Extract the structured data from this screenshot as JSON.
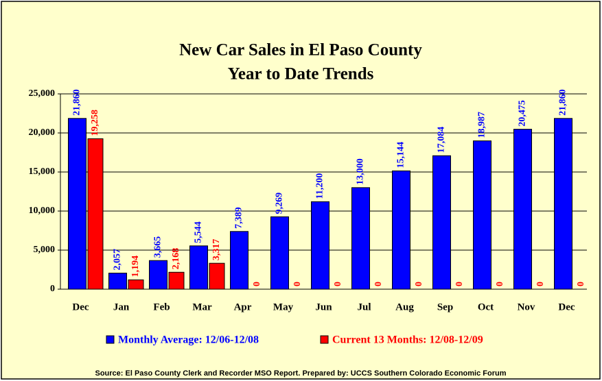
{
  "chart_data": {
    "type": "bar",
    "title": [
      "New Car Sales in El Paso County",
      "Year to Date Trends"
    ],
    "categories": [
      "Dec",
      "Jan",
      "Feb",
      "Mar",
      "Apr",
      "May",
      "Jun",
      "Jul",
      "Aug",
      "Sep",
      "Oct",
      "Nov",
      "Dec"
    ],
    "series": [
      {
        "name": "Monthly Average: 12/06-12/08",
        "color": "#0000ff",
        "values": [
          21860,
          2057,
          3665,
          5544,
          7389,
          9269,
          11200,
          13000,
          15144,
          17084,
          18987,
          20475,
          21860
        ],
        "value_labels": [
          "21,860",
          "2,057",
          "3,665",
          "5,544",
          "7,389",
          "9,269",
          "11,200",
          "13,000",
          "15,144",
          "17,084",
          "18,987",
          "20,475",
          "21,860"
        ]
      },
      {
        "name": "Current 13 Months: 12/08-12/09",
        "color": "#ff0000",
        "values": [
          19258,
          1194,
          2168,
          3317,
          0,
          0,
          0,
          0,
          0,
          0,
          0,
          0,
          0
        ],
        "value_labels": [
          "19,258",
          "1,194",
          "2,168",
          "3,317",
          "0",
          "0",
          "0",
          "0",
          "0",
          "0",
          "0",
          "0",
          "0"
        ]
      }
    ],
    "ylim": [
      0,
      25000
    ],
    "yticks": [
      0,
      {
        "value": 5000,
        "label": "5,000"
      },
      {
        "value": 10000,
        "label": "10,000"
      },
      {
        "value": 15000,
        "label": "15,000"
      },
      {
        "value": 20000,
        "label": "20,000"
      },
      {
        "value": 25000,
        "label": "25,000"
      }
    ],
    "grid": true,
    "legend": "bottom",
    "source": "Source: El Paso County Clerk and Recorder MSO Report.  Prepared by: UCCS Southern Colorado Economic Forum"
  }
}
